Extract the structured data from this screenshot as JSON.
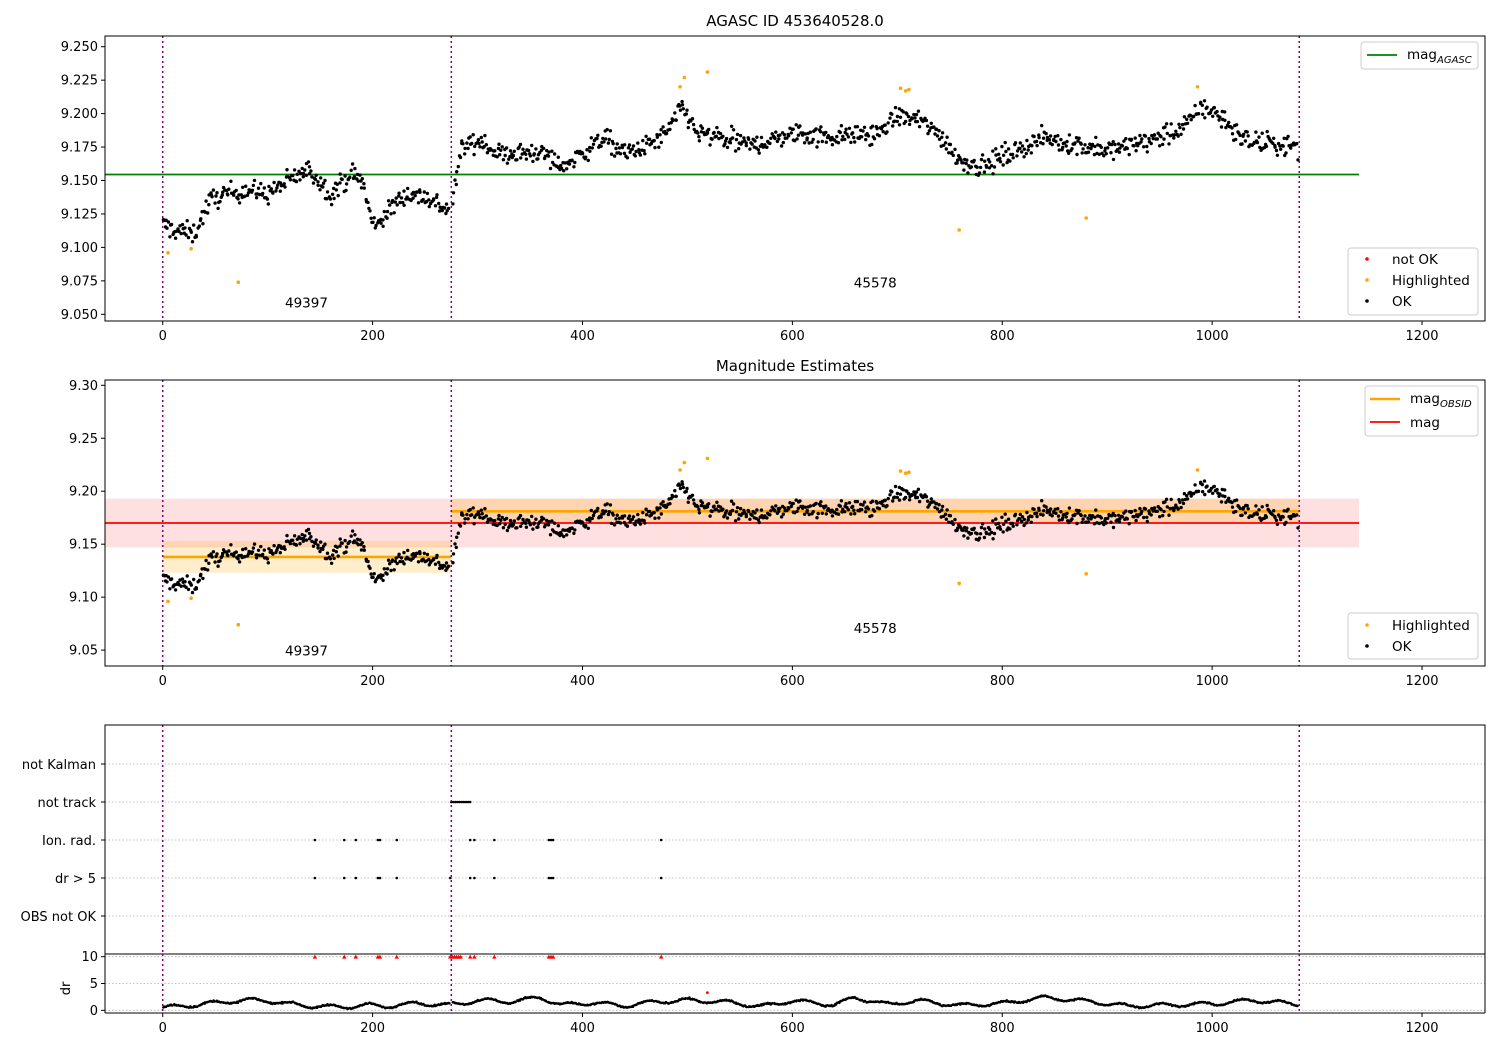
{
  "chart_data": [
    {
      "type": "scatter",
      "title": "AGASC ID 453640528.0",
      "xlim": [
        -55,
        1260
      ],
      "ylim": [
        9.045,
        9.258
      ],
      "xticks": [
        0,
        200,
        400,
        600,
        800,
        1000,
        1200
      ],
      "yticks": [
        9.05,
        9.075,
        9.1,
        9.125,
        9.15,
        9.175,
        9.2,
        9.225,
        9.25
      ],
      "ytick_labels": [
        "9.050",
        "9.075",
        "9.100",
        "9.125",
        "9.150",
        "9.175",
        "9.200",
        "9.225",
        "9.250"
      ],
      "obsid_boundaries": [
        0,
        275,
        1083
      ],
      "obsid_labels": [
        {
          "text": "49397",
          "x": 137,
          "y": 9.055
        },
        {
          "text": "45578",
          "x": 679,
          "y": 9.07
        }
      ],
      "lines": [
        {
          "name": "mag",
          "subscript": "AGASC",
          "y": 9.1545,
          "x": [
            -55,
            1140
          ],
          "color": "#008000"
        }
      ],
      "legend_lines_position": "upper right",
      "legend_points_position": "lower right",
      "legend_points": [
        {
          "label": "not OK",
          "color": "#ff0000"
        },
        {
          "label": "Highlighted",
          "color": "#ffa500"
        },
        {
          "label": "OK",
          "color": "#000000"
        }
      ],
      "highlighted_points": [
        {
          "x": 5,
          "y": 9.096
        },
        {
          "x": 27,
          "y": 9.099
        },
        {
          "x": 72,
          "y": 9.074
        },
        {
          "x": 493,
          "y": 9.22
        },
        {
          "x": 497,
          "y": 9.227
        },
        {
          "x": 519,
          "y": 9.231
        },
        {
          "x": 703,
          "y": 9.219
        },
        {
          "x": 708,
          "y": 9.217
        },
        {
          "x": 711,
          "y": 9.218
        },
        {
          "x": 759,
          "y": 9.113
        },
        {
          "x": 880,
          "y": 9.122
        },
        {
          "x": 986,
          "y": 9.22
        }
      ],
      "ok_points_trend": {
        "x": [
          0,
          10,
          20,
          30,
          45,
          60,
          80,
          100,
          120,
          140,
          160,
          180,
          190,
          200,
          210,
          230,
          250,
          275,
          285,
          300,
          320,
          340,
          360,
          380,
          400,
          420,
          440,
          460,
          480,
          495,
          510,
          540,
          560,
          600,
          640,
          680,
          700,
          720,
          740,
          760,
          780,
          800,
          840,
          880,
          900,
          940,
          970,
          990,
          1010,
          1030,
          1060,
          1083
        ],
        "y": [
          9.117,
          9.113,
          9.112,
          9.11,
          9.135,
          9.14,
          9.143,
          9.14,
          9.15,
          9.158,
          9.14,
          9.155,
          9.15,
          9.117,
          9.122,
          9.14,
          9.138,
          9.127,
          9.175,
          9.18,
          9.17,
          9.17,
          9.172,
          9.16,
          9.17,
          9.182,
          9.17,
          9.175,
          9.185,
          9.205,
          9.185,
          9.18,
          9.176,
          9.185,
          9.183,
          9.185,
          9.198,
          9.195,
          9.185,
          9.165,
          9.16,
          9.168,
          9.182,
          9.175,
          9.172,
          9.18,
          9.188,
          9.205,
          9.197,
          9.18,
          9.177,
          9.175
        ]
      }
    },
    {
      "type": "scatter",
      "title": "Magnitude Estimates",
      "xlim": [
        -55,
        1260
      ],
      "ylim": [
        9.035,
        9.305
      ],
      "xticks": [
        0,
        200,
        400,
        600,
        800,
        1000,
        1200
      ],
      "yticks": [
        9.05,
        9.1,
        9.15,
        9.2,
        9.25,
        9.3
      ],
      "ytick_labels": [
        "9.05",
        "9.10",
        "9.15",
        "9.20",
        "9.25",
        "9.30"
      ],
      "obsid_boundaries": [
        0,
        275,
        1083
      ],
      "obsid_labels": [
        {
          "text": "49397",
          "x": 137,
          "y": 9.045
        },
        {
          "text": "45578",
          "x": 679,
          "y": 9.066
        }
      ],
      "lines": [
        {
          "name": "mag",
          "subscript": "OBSID",
          "color": "#ffa500",
          "segments": [
            {
              "x": [
                0,
                275
              ],
              "y": 9.138,
              "band": [
                9.123,
                9.153
              ]
            },
            {
              "x": [
                275,
                1083
              ],
              "y": 9.181,
              "band": [
                9.17,
                9.193
              ]
            }
          ]
        },
        {
          "name": "mag",
          "subscript": "",
          "color": "#ff0000",
          "y": 9.17,
          "x": [
            -55,
            1140
          ],
          "band": [
            9.147,
            9.193
          ]
        }
      ],
      "legend_lines_position": "upper right",
      "legend_points_position": "lower right",
      "legend_points": [
        {
          "label": "Highlighted",
          "color": "#ffa500"
        },
        {
          "label": "OK",
          "color": "#000000"
        }
      ]
    },
    {
      "type": "scatter",
      "title": "",
      "xlim": [
        -55,
        1260
      ],
      "xticks": [
        0,
        200,
        400,
        600,
        800,
        1000,
        1200
      ],
      "flag_rows": [
        "not Kalman",
        "not track",
        "Ion. rad.",
        "dr > 5",
        "OBS not OK"
      ],
      "flag_points": {
        "not track": [
          275,
          277,
          279,
          281,
          283,
          285,
          287,
          289,
          291,
          293
        ],
        "Ion. rad.": [
          145,
          173,
          184,
          205,
          207,
          223,
          293,
          297,
          316,
          368,
          370,
          372,
          475
        ],
        "dr > 5": [
          145,
          173,
          184,
          205,
          207,
          223,
          274,
          293,
          297,
          316,
          368,
          370,
          372,
          475
        ]
      },
      "obsid_boundaries": [
        0,
        275,
        1083
      ]
    },
    {
      "type": "scatter",
      "title": "",
      "ylabel": "dr",
      "xlim": [
        -55,
        1260
      ],
      "ylim": [
        -0.5,
        10.5
      ],
      "xticks": [
        0,
        200,
        400,
        600,
        800,
        1000,
        1200
      ],
      "yticks": [
        0,
        5,
        10
      ],
      "ytick_labels": [
        "0",
        "5",
        "10"
      ],
      "obsid_boundaries": [
        0,
        275,
        1083
      ],
      "clipped_points_y": 10,
      "clipped_points_x": [
        145,
        173,
        184,
        205,
        207,
        223,
        274,
        276,
        278,
        280,
        282,
        284,
        293,
        297,
        316,
        368,
        370,
        372,
        475
      ],
      "red_points": [
        {
          "x": 519,
          "y": 3.3
        }
      ],
      "dr_trend": {
        "x": [
          0,
          30,
          55,
          80,
          100,
          120,
          140,
          170,
          195,
          210,
          240,
          270,
          285,
          300,
          330,
          360,
          380,
          410,
          440,
          470,
          500,
          540,
          570,
          600,
          640,
          660,
          690,
          720,
          760,
          800,
          840,
          880,
          920,
          960,
          1000,
          1040,
          1083
        ],
        "y": [
          0.5,
          1.0,
          1.5,
          1.9,
          1.8,
          1.2,
          0.8,
          0.6,
          1.0,
          0.7,
          1.3,
          1.0,
          1.3,
          1.9,
          1.6,
          2.4,
          1.0,
          1.4,
          0.8,
          1.6,
          1.9,
          1.5,
          0.7,
          1.8,
          1.0,
          2.4,
          1.1,
          1.8,
          0.9,
          1.3,
          2.4,
          1.7,
          0.8,
          1.0,
          1.2,
          1.9,
          1.1
        ]
      }
    }
  ]
}
